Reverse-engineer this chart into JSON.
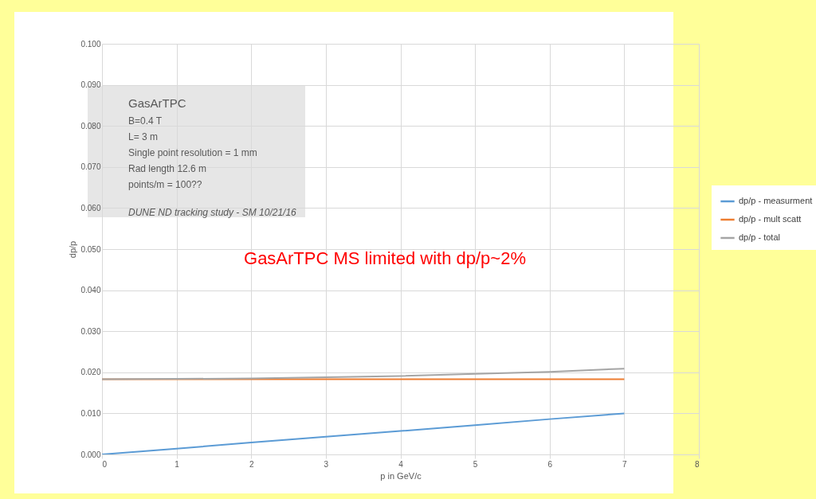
{
  "chart_data": {
    "type": "line",
    "xlabel": "p in GeV/c",
    "ylabel": "dp/p",
    "x": [
      0,
      1,
      2,
      3,
      4,
      5,
      6,
      7
    ],
    "xlim": [
      0,
      8
    ],
    "xticks": [
      0,
      1,
      2,
      3,
      4,
      5,
      6,
      7,
      8
    ],
    "ylim": [
      0,
      0.1
    ],
    "yticks": [
      {
        "value": 0,
        "label": "0.000"
      },
      {
        "value": 0.01,
        "label": "0.010"
      },
      {
        "value": 0.02,
        "label": "0.020"
      },
      {
        "value": 0.03,
        "label": "0.030"
      },
      {
        "value": 0.04,
        "label": "0.040"
      },
      {
        "value": 0.05,
        "label": "0.050"
      },
      {
        "value": 0.06,
        "label": "0.060"
      },
      {
        "value": 0.07,
        "label": "0.070"
      },
      {
        "value": 0.08,
        "label": "0.080"
      },
      {
        "value": 0.09,
        "label": "0.090"
      },
      {
        "value": 0.1,
        "label": "0.100"
      }
    ],
    "grid": true,
    "legend": "right",
    "series": [
      {
        "name": "dp/p - measurment",
        "color": "#5b9bd5",
        "values": [
          0,
          0.0014,
          0.0029,
          0.0043,
          0.0057,
          0.0071,
          0.0086,
          0.01
        ]
      },
      {
        "name": "dp/p - mult scatt",
        "color": "#ed7d31",
        "values": [
          0.0183,
          0.0183,
          0.0183,
          0.0183,
          0.0183,
          0.0183,
          0.0183,
          0.0183
        ]
      },
      {
        "name": "dp/p - total",
        "color": "#a5a5a5",
        "values": [
          0.0183,
          0.0184,
          0.0185,
          0.0188,
          0.0191,
          0.0196,
          0.0201,
          0.0209
        ]
      }
    ],
    "annotations": [
      "GasArTPC",
      "B=0.4 T",
      "L= 3 m",
      "Single point resolution = 1 mm",
      "Rad length 12.6 m",
      "points/m = 100??",
      "DUNE ND tracking study - SM 10/21/16",
      "GasArTPC MS limited with dp/p~2%"
    ]
  }
}
